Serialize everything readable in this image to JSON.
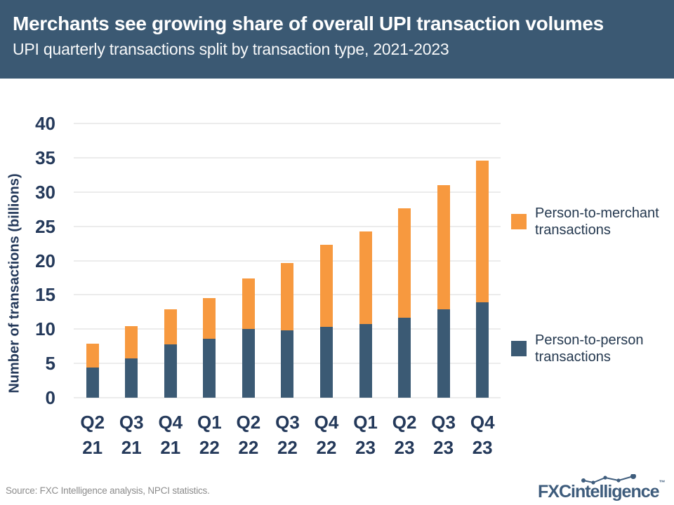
{
  "header": {
    "title": "Merchants see growing share of overall UPI transaction volumes",
    "subtitle": "UPI quarterly transactions split by transaction type, 2021-2023"
  },
  "chart_data": {
    "type": "bar",
    "stacked": true,
    "title": "Merchants see growing share of overall UPI transaction volumes",
    "subtitle": "UPI quarterly transactions split by transaction type, 2021-2023",
    "categories": [
      "Q2 21",
      "Q3 21",
      "Q4 21",
      "Q1 22",
      "Q2 22",
      "Q3 22",
      "Q4 22",
      "Q1 23",
      "Q2 23",
      "Q3 23",
      "Q4 23"
    ],
    "series": [
      {
        "name": "Person-to-person transactions",
        "color": "#3B5A74",
        "values": [
          4.4,
          5.7,
          7.8,
          8.6,
          10.0,
          9.8,
          10.3,
          10.7,
          11.7,
          12.9,
          13.9
        ]
      },
      {
        "name": "Person-to-merchant transactions",
        "color": "#F7993F",
        "values": [
          3.5,
          4.7,
          5.1,
          5.9,
          7.4,
          9.8,
          12.0,
          13.5,
          15.9,
          18.1,
          20.7
        ]
      }
    ],
    "totals": [
      7.9,
      10.4,
      12.9,
      14.5,
      17.4,
      19.6,
      22.3,
      24.2,
      27.6,
      31.0,
      34.6
    ],
    "xlabel": "",
    "ylabel": "Number of transactions (billions)",
    "ylim": [
      0,
      40
    ],
    "ytick_step": 5,
    "grid": true,
    "gridline_color": "#ECECEC",
    "legend_position": "right"
  },
  "legend": {
    "items": [
      {
        "label": "Person-to-merchant transactions",
        "color": "#F7993F"
      },
      {
        "label": "Person-to-person transactions",
        "color": "#3B5A74"
      }
    ]
  },
  "footer": {
    "source": "Source: FXC Intelligence analysis, NPCI statistics.",
    "logo_text": "FXCintelligence",
    "logo_tm": "™"
  },
  "colors": {
    "header_bg": "#3B5973",
    "axis_text": "#24395A",
    "legend_text": "#24384F",
    "source_text": "#8C8C8C",
    "logo": "#3E5C7C"
  }
}
